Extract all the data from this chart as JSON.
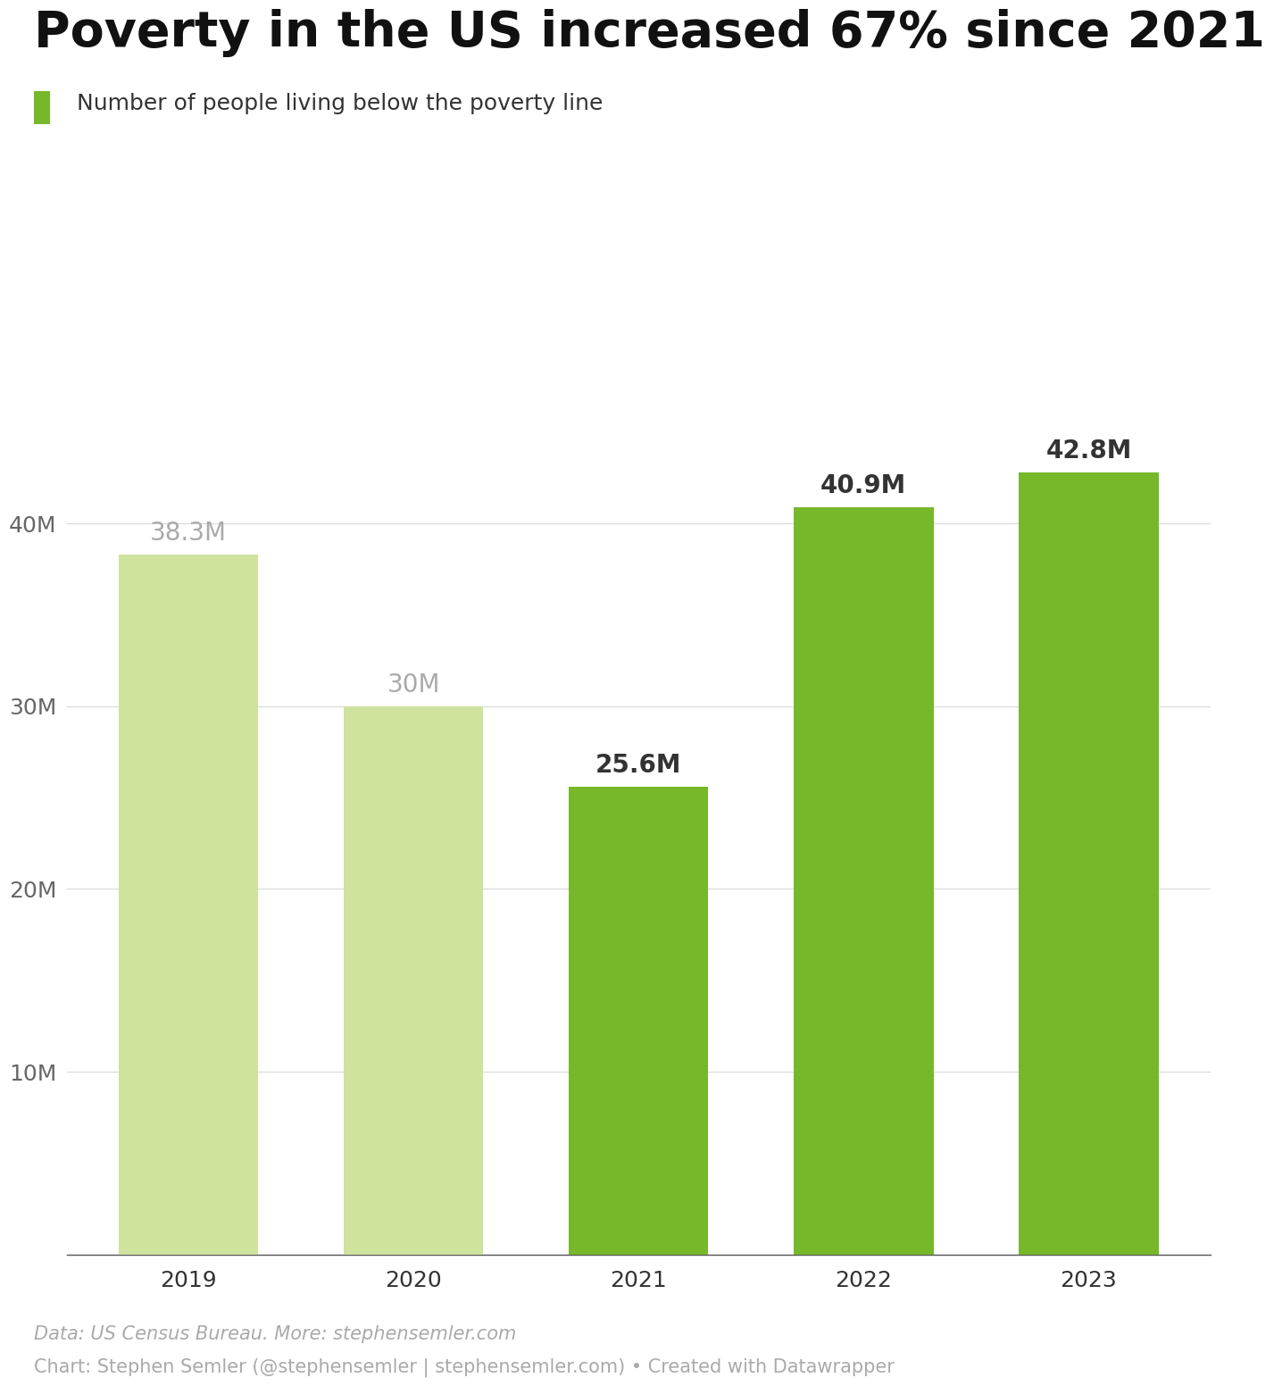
{
  "title": "Poverty in the US increased 67% since 2021",
  "legend_label": "Number of people living below the poverty line",
  "years": [
    "2019",
    "2020",
    "2021",
    "2022",
    "2023"
  ],
  "values": [
    38.3,
    30.0,
    25.6,
    40.9,
    42.8
  ],
  "bar_colors": [
    "#cfe39e",
    "#cfe39e",
    "#76b82a",
    "#76b82a",
    "#76b82a"
  ],
  "bar_labels": [
    "38.3M",
    "30M",
    "25.6M",
    "40.9M",
    "42.8M"
  ],
  "label_colors": [
    "#aaaaaa",
    "#aaaaaa",
    "#333333",
    "#333333",
    "#333333"
  ],
  "label_fontweights": [
    "normal",
    "normal",
    "bold",
    "bold",
    "bold"
  ],
  "legend_color": "#76b82a",
  "ylim": [
    0,
    50
  ],
  "yticks": [
    0,
    10,
    20,
    30,
    40
  ],
  "ytick_labels": [
    "",
    "10M",
    "20M",
    "30M",
    "40M"
  ],
  "grid_color": "#d8d8d8",
  "background_color": "#ffffff",
  "title_fontsize": 40,
  "legend_fontsize": 18,
  "tick_fontsize": 18,
  "bar_label_fontsize": 20,
  "footer_line1": "Data: US Census Bureau. More: stephensemler.com",
  "footer_line2": "Chart: Stephen Semler (@stephensemler | stephensemler.com) • Created with Datawrapper",
  "footer_fontsize": 15,
  "footer_color": "#aaaaaa"
}
